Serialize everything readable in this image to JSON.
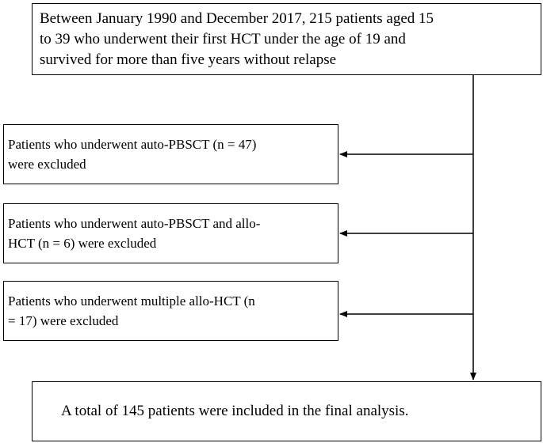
{
  "boxes": {
    "eligibility": "Between January 1990 and December 2017, 215 patients aged 15\nto 39 who underwent their first HCT under the age of 19 and\nsurvived for more than five years without relapse",
    "excluded_auto_pbsct": "Patients  who underwent auto-PBSCT (n = 47)\nwere excluded",
    "excluded_auto_and_allo": "Patients  who underwent auto-PBSCT and allo-\nHCT (n = 6) were excluded",
    "excluded_multiple_allo": "Patients  who underwent multiple allo-HCT (n\n= 17) were excluded",
    "final_analysis": "A total of 145 patients were included in the final analysis."
  }
}
